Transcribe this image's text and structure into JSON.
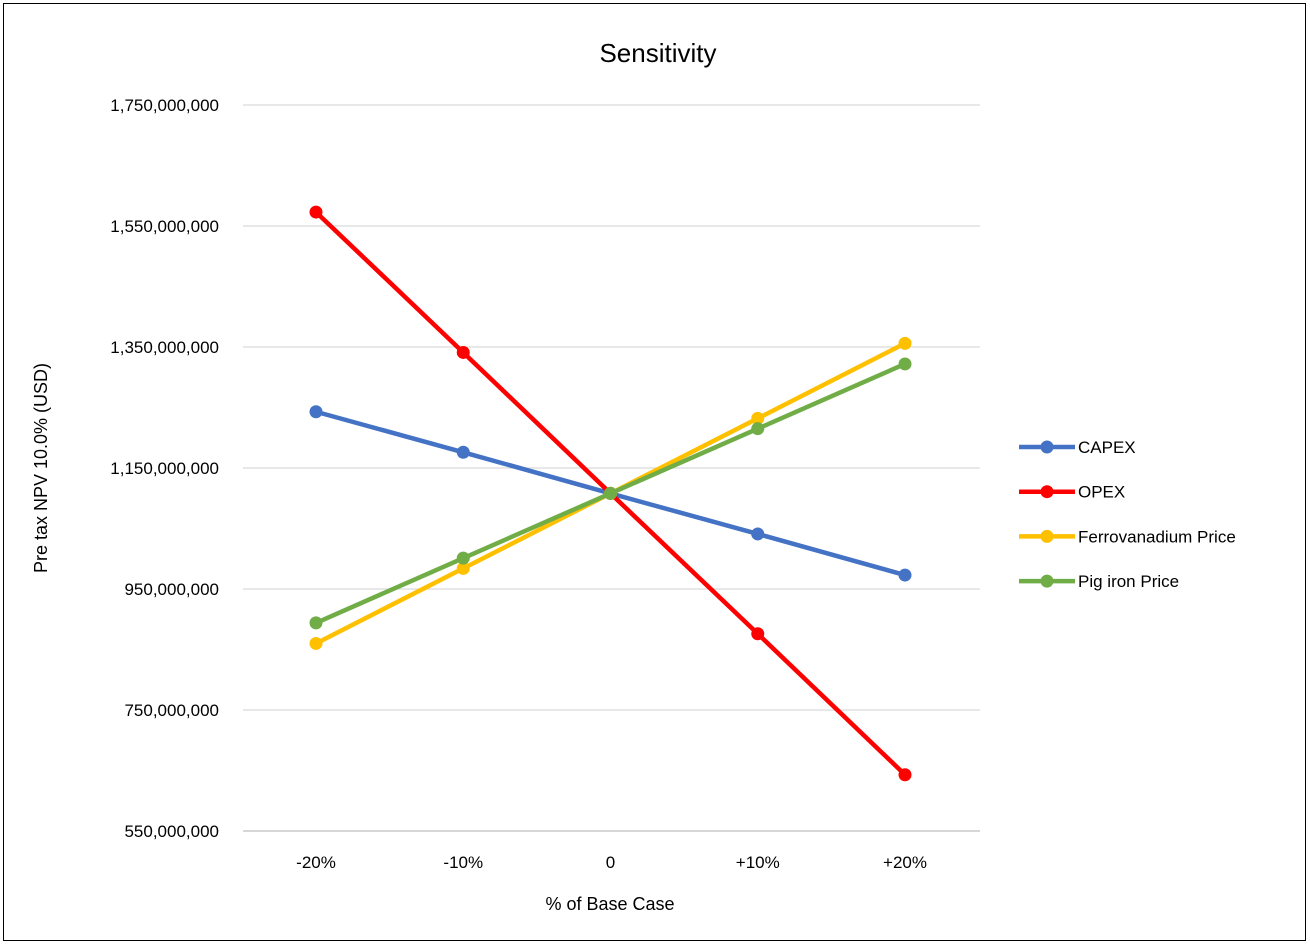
{
  "chart_data": {
    "type": "line",
    "title": "Sensitivity",
    "xlabel": "% of Base Case",
    "ylabel": "Pre tax NPV 10.0% (USD)",
    "categories": [
      "-20%",
      "-10%",
      "0",
      "+10%",
      "+20%"
    ],
    "ylim": [
      550000000,
      1750000000
    ],
    "yticks": [
      550000000,
      750000000,
      950000000,
      1150000000,
      1350000000,
      1550000000,
      1750000000
    ],
    "ytick_labels": [
      "550,000,000",
      "750,000,000",
      "950,000,000",
      "1,150,000,000",
      "1,350,000,000",
      "1,550,000,000",
      "1,750,000,000"
    ],
    "grid": true,
    "legend_position": "right",
    "series": [
      {
        "name": "CAPEX",
        "color": "#4472C4",
        "values": [
          1243000000,
          1176000000,
          1108000000,
          1041000000,
          973000000
        ]
      },
      {
        "name": "OPEX",
        "color": "#FF0000",
        "values": [
          1573000000,
          1341000000,
          1108000000,
          876000000,
          643000000
        ]
      },
      {
        "name": "Ferrovanadium Price",
        "color": "#FFC000",
        "values": [
          860000000,
          984000000,
          1108000000,
          1232000000,
          1356000000
        ]
      },
      {
        "name": "Pig iron Price",
        "color": "#70AD47",
        "values": [
          894000000,
          1001000000,
          1108000000,
          1215000000,
          1322000000
        ]
      }
    ]
  }
}
